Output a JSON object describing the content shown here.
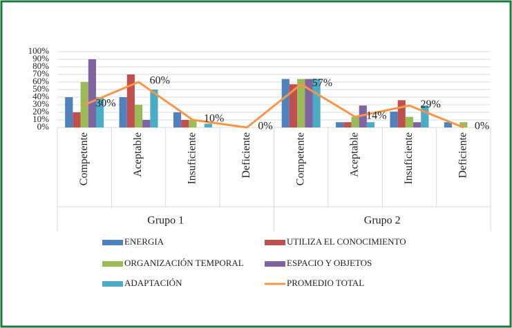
{
  "chart_data": {
    "type": "bar",
    "categories": [
      "Competente",
      "Aceptable",
      "Insuficiente",
      "Deficiente",
      "Competente",
      "Aceptable",
      "Insuficiente",
      "Deficiente"
    ],
    "groups": [
      "Grupo 1",
      "Grupo 2"
    ],
    "series": [
      {
        "name": "ENERGIA",
        "color": "#4f81bd",
        "values": [
          40,
          40,
          20,
          0,
          64,
          7,
          21,
          7
        ]
      },
      {
        "name": "UTILIZA EL CONOCIMIENTO",
        "color": "#c0504d",
        "values": [
          20,
          70,
          10,
          0,
          57,
          7,
          36,
          0
        ]
      },
      {
        "name": "ORGANIZACIÓN TEMPORAL",
        "color": "#9bbb59",
        "values": [
          60,
          30,
          10,
          0,
          64,
          14,
          14,
          7
        ]
      },
      {
        "name": "ESPACIO Y OBJETOS",
        "color": "#8064a2",
        "values": [
          90,
          10,
          0,
          0,
          64,
          29,
          7,
          0
        ]
      },
      {
        "name": "ADAPTACIÓN",
        "color": "#4bacc6",
        "values": [
          40,
          50,
          5,
          0,
          64,
          7,
          29,
          0
        ]
      },
      {
        "name": "PROMEDIO TOTAL",
        "color": "#f79646",
        "type": "line",
        "values": [
          30,
          60,
          10,
          0,
          57,
          14,
          29,
          0
        ],
        "value_labels": [
          "30%",
          "60%",
          "10%",
          "0%",
          "57%",
          "14%",
          "29%",
          "0%"
        ]
      }
    ],
    "ylim": [
      0,
      100
    ],
    "yticks": [
      {
        "value": 0,
        "label": "0%"
      },
      {
        "value": 10,
        "label": "10%"
      },
      {
        "value": 20,
        "label": "20%"
      },
      {
        "value": 30,
        "label": "30%"
      },
      {
        "value": 40,
        "label": "40%"
      },
      {
        "value": 50,
        "label": "50%"
      },
      {
        "value": 60,
        "label": "60%"
      },
      {
        "value": 70,
        "label": "70%"
      },
      {
        "value": 80,
        "label": "80%"
      },
      {
        "value": 90,
        "label": "90%"
      },
      {
        "value": 100,
        "label": "100%"
      }
    ],
    "grid": true
  }
}
